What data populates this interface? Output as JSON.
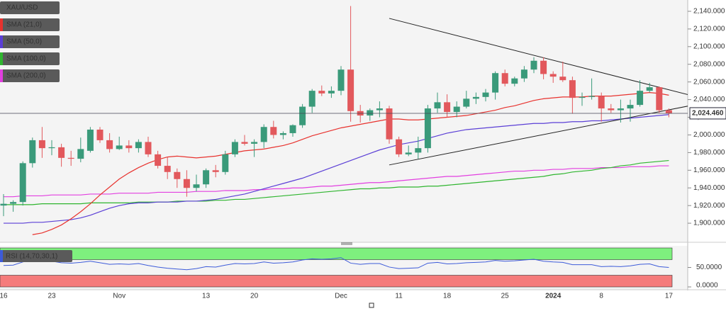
{
  "chart_data": [
    {
      "type": "candlestick",
      "name": "XAU/USD",
      "up_color": "#3a9a7a",
      "down_color": "#e2585c",
      "categories": [
        "16",
        null,
        null,
        null,
        null,
        "23",
        null,
        null,
        null,
        null,
        null,
        null,
        "Nov",
        null,
        null,
        null,
        null,
        null,
        null,
        null,
        null,
        "13",
        null,
        null,
        null,
        null,
        "20",
        null,
        null,
        null,
        null,
        null,
        null,
        null,
        null,
        "Dec",
        null,
        null,
        null,
        null,
        null,
        "11",
        null,
        null,
        null,
        null,
        "18",
        null,
        null,
        null,
        null,
        null,
        "25",
        null,
        null,
        null,
        null,
        "2024",
        null,
        null,
        null,
        null,
        "8",
        null,
        null,
        null,
        null,
        null,
        null,
        "17"
      ],
      "open": [
        1920,
        1922,
        1924,
        1968,
        1994,
        1985,
        1986,
        1974,
        1973,
        1982,
        2006,
        1994,
        1984,
        1988,
        1985,
        1992,
        1978,
        1965,
        1958,
        1950,
        1940,
        1944,
        1960,
        1958,
        1978,
        1992,
        1990,
        1992,
        2009,
        2000,
        2002,
        2011,
        2032,
        2050,
        2047,
        2050,
        2074,
        2027,
        2022,
        2028,
        2030,
        1995,
        1978,
        1980,
        1985,
        2030,
        2037,
        2026,
        2032,
        2041,
        2043,
        2048,
        2070,
        2058,
        2064,
        2074,
        2084,
        2069,
        2066,
        2062,
        2042,
        2043,
        2044,
        2030,
        2028,
        2030,
        2034,
        2050,
        2054,
        2028
      ],
      "high": [
        1933,
        1926,
        1970,
        1997,
        2009,
        1994,
        1990,
        1982,
        1997,
        2009,
        2009,
        2002,
        1998,
        1994,
        1995,
        1998,
        1982,
        1975,
        1962,
        1960,
        1955,
        1962,
        1966,
        1982,
        1995,
        2000,
        1995,
        2012,
        2016,
        2004,
        2012,
        2035,
        2052,
        2056,
        2055,
        2078,
        2146,
        2034,
        2030,
        2038,
        2033,
        1998,
        1988,
        1998,
        2034,
        2048,
        2046,
        2038,
        2050,
        2048,
        2052,
        2072,
        2074,
        2066,
        2078,
        2088,
        2088,
        2072,
        2083,
        2066,
        2048,
        2064,
        2048,
        2035,
        2040,
        2040,
        2062,
        2059,
        2055,
        2030
      ],
      "low": [
        1908,
        1913,
        1920,
        1963,
        1974,
        1977,
        1964,
        1965,
        1969,
        1980,
        1991,
        1980,
        1983,
        1980,
        1980,
        1975,
        1962,
        1950,
        1940,
        1930,
        1936,
        1940,
        1952,
        1955,
        1975,
        1988,
        1975,
        1985,
        1996,
        1995,
        1998,
        2008,
        2025,
        2044,
        2042,
        2045,
        2015,
        2014,
        2016,
        2020,
        1990,
        1975,
        1976,
        1973,
        1980,
        2025,
        2020,
        2020,
        2030,
        2035,
        2038,
        2040,
        2055,
        2055,
        2060,
        2070,
        2063,
        2059,
        2060,
        2024,
        2033,
        2040,
        2015,
        2025,
        2014,
        2015,
        2032,
        2048,
        2025,
        2020
      ],
      "close": [
        1922,
        1924,
        1968,
        1994,
        1985,
        1986,
        1974,
        1973,
        1984,
        2006,
        1994,
        1984,
        1988,
        1985,
        1992,
        1978,
        1965,
        1958,
        1950,
        1940,
        1944,
        1960,
        1958,
        1978,
        1992,
        1990,
        1992,
        2009,
        2000,
        2002,
        2011,
        2032,
        2050,
        2047,
        2050,
        2074,
        2027,
        2022,
        2028,
        2030,
        1995,
        1978,
        1980,
        1985,
        2030,
        2037,
        2026,
        2032,
        2041,
        2043,
        2048,
        2070,
        2058,
        2064,
        2074,
        2084,
        2069,
        2066,
        2062,
        2042,
        2043,
        2044,
        2030,
        2028,
        2030,
        2034,
        2050,
        2054,
        2028,
        2024.46
      ],
      "lines": [
        {
          "name": "SMA (21,0)",
          "color": "#e8322e",
          "values": [
            null,
            null,
            null,
            1887,
            1889,
            1893,
            1898,
            1905,
            1913,
            1922,
            1932,
            1941,
            1950,
            1957,
            1963,
            1968,
            1972,
            1975,
            1976,
            1975,
            1974,
            1975,
            1976,
            1978,
            1980,
            1982,
            1983,
            1984,
            1986,
            1988,
            1991,
            1995,
            1999,
            2002,
            2005,
            2008,
            2010,
            2012,
            2014,
            2016,
            2018,
            2018,
            2017,
            2017,
            2018,
            2019,
            2020,
            2021,
            2022,
            2024,
            2026,
            2028,
            2031,
            2033,
            2036,
            2039,
            2041,
            2042,
            2043,
            2043,
            2043,
            2044,
            2044,
            2044,
            2045,
            2046,
            2047,
            2048,
            2047,
            2045
          ]
        },
        {
          "name": "SMA (50,0)",
          "color": "#5b3fd6",
          "values": [
            1900,
            1900,
            1900,
            1901,
            1901,
            1902,
            1903,
            1904,
            1906,
            1909,
            1913,
            1917,
            1920,
            1922,
            1923,
            1923,
            1924,
            1924,
            1924,
            1925,
            1925,
            1926,
            1927,
            1929,
            1931,
            1933,
            1936,
            1939,
            1942,
            1945,
            1948,
            1951,
            1955,
            1959,
            1963,
            1967,
            1971,
            1975,
            1979,
            1983,
            1986,
            1989,
            1991,
            1993,
            1996,
            1999,
            2002,
            2004,
            2006,
            2007,
            2008,
            2009,
            2010,
            2011,
            2012,
            2013,
            2013,
            2014,
            2014,
            2015,
            2015,
            2016,
            2016,
            2017,
            2018,
            2019,
            2020,
            2021,
            2022,
            2023
          ]
        },
        {
          "name": "SMA (100,0)",
          "color": "#2fb52f",
          "values": [
            1921,
            1921,
            1921,
            1921,
            1922,
            1922,
            1922,
            1922,
            1922,
            1923,
            1923,
            1923,
            1923,
            1923,
            1924,
            1924,
            1924,
            1924,
            1925,
            1925,
            1925,
            1925,
            1926,
            1926,
            1927,
            1927,
            1928,
            1929,
            1930,
            1931,
            1932,
            1933,
            1934,
            1935,
            1936,
            1937,
            1938,
            1939,
            1939,
            1940,
            1940,
            1941,
            1941,
            1941,
            1942,
            1942,
            1943,
            1944,
            1945,
            1946,
            1947,
            1948,
            1949,
            1950,
            1951,
            1952,
            1953,
            1955,
            1956,
            1958,
            1959,
            1960,
            1962,
            1963,
            1965,
            1966,
            1968,
            1969,
            1970,
            1971
          ]
        },
        {
          "name": "SMA (200,0)",
          "color": "#e23fe0",
          "values": [
            1930,
            1930,
            1931,
            1931,
            1931,
            1932,
            1932,
            1932,
            1932,
            1933,
            1933,
            1933,
            1934,
            1934,
            1934,
            1934,
            1935,
            1935,
            1935,
            1935,
            1936,
            1936,
            1936,
            1937,
            1937,
            1937,
            1938,
            1938,
            1939,
            1939,
            1940,
            1940,
            1941,
            1942,
            1942,
            1943,
            1944,
            1945,
            1946,
            1946,
            1947,
            1948,
            1949,
            1950,
            1951,
            1952,
            1953,
            1953,
            1954,
            1955,
            1956,
            1957,
            1958,
            1959,
            1959,
            1960,
            1960,
            1961,
            1961,
            1962,
            1962,
            1962,
            1963,
            1963,
            1963,
            1964,
            1964,
            1964,
            1965,
            1965
          ]
        }
      ],
      "trend_lines": [
        {
          "x": [
            40,
            73
          ],
          "y": [
            2132,
            2040
          ],
          "color": "#222222"
        },
        {
          "x": [
            40,
            73
          ],
          "y": [
            1966,
            2037
          ],
          "color": "#222222"
        }
      ],
      "last_price": {
        "value": 2024.46,
        "label": "2,024.460"
      },
      "ylim": [
        1880,
        2148
      ],
      "yticks": [
        {
          "value": 1900,
          "label": "1,900.000"
        },
        {
          "value": 1920,
          "label": "1,920.000"
        },
        {
          "value": 1940,
          "label": "1,940.000"
        },
        {
          "value": 1960,
          "label": "1,960.000"
        },
        {
          "value": 1980,
          "label": "1,980.000"
        },
        {
          "value": 2000,
          "label": "2,000.000"
        },
        {
          "value": 2020,
          "label": "2,020.000"
        },
        {
          "value": 2040,
          "label": "2,040.000"
        },
        {
          "value": 2060,
          "label": "2,060.000"
        },
        {
          "value": 2080,
          "label": "2,080.000"
        },
        {
          "value": 2100,
          "label": "2,100.000"
        },
        {
          "value": 2120,
          "label": "2,120.000"
        },
        {
          "value": 2140,
          "label": "2,140.000"
        }
      ]
    },
    {
      "type": "line",
      "name": "RSI (14,70,30,1)",
      "color": "#3d5bd9",
      "values": [
        55,
        56,
        64,
        70,
        66,
        66,
        62,
        61,
        63,
        66,
        62,
        58,
        59,
        58,
        60,
        55,
        51,
        48,
        46,
        44,
        47,
        52,
        51,
        56,
        60,
        59,
        60,
        64,
        61,
        62,
        64,
        69,
        72,
        71,
        72,
        75,
        61,
        58,
        60,
        60,
        51,
        47,
        48,
        49,
        61,
        63,
        59,
        60,
        62,
        63,
        64,
        68,
        66,
        67,
        69,
        71,
        66,
        64,
        63,
        57,
        57,
        57,
        52,
        53,
        52,
        54,
        58,
        59,
        52,
        50
      ],
      "bands": [
        {
          "range": [
            70,
            100
          ],
          "color": "#7ef07e"
        },
        {
          "range": [
            0,
            30
          ],
          "color": "#f57b7b"
        }
      ],
      "ylim": [
        0,
        100
      ],
      "yticks": [
        {
          "value": 0,
          "label": "0.0000"
        },
        {
          "value": 50,
          "label": "50.0000"
        }
      ]
    }
  ]
}
